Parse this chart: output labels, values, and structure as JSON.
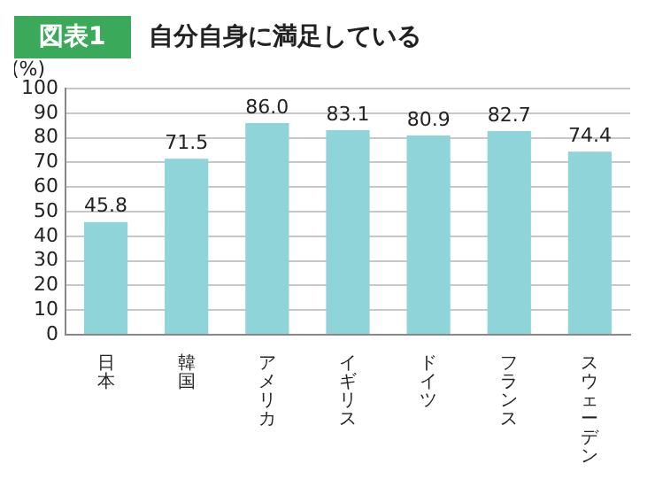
{
  "chart_data": {
    "type": "bar",
    "title": "図表1",
    "subtitle": "自分自身に満足している",
    "ylabel": "(%)",
    "categories": [
      "日本",
      "韓国",
      "アメリカ",
      "イギリス",
      "ドイツ",
      "フランス",
      "スウェーデン"
    ],
    "values": [
      45.8,
      71.5,
      86.0,
      83.1,
      80.9,
      82.7,
      74.4
    ],
    "value_labels": [
      "45.8",
      "71.5",
      "86.0",
      "83.1",
      "80.9",
      "82.7",
      "74.4"
    ],
    "color": "#8fd4d8",
    "ylim": [
      0,
      100
    ],
    "yticks": [
      0,
      10,
      20,
      30,
      40,
      50,
      60,
      70,
      80,
      90,
      100
    ],
    "grid": "y",
    "legend": false
  }
}
